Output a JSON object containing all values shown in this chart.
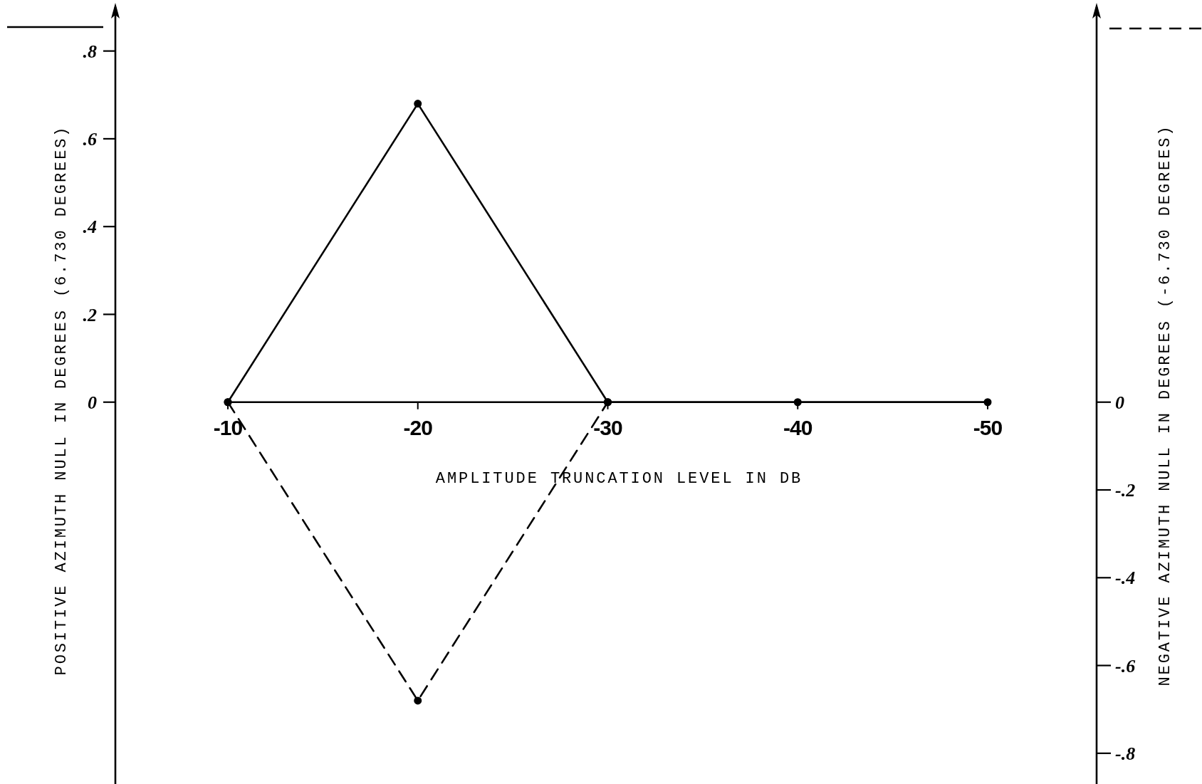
{
  "chart_data": {
    "type": "line",
    "xlabel": "AMPLITUDE TRUNCATION LEVEL IN DB",
    "ylabel": "POSITIVE AZIMUTH NULL IN DEGREES (6.730 DEGREES)",
    "y2label": "NEGATIVE AZIMUTH NULL IN DEGREES (-6.730 DEGREES)",
    "xlim": [
      -10,
      -50
    ],
    "xticks": [
      -10,
      -20,
      -30,
      -40,
      -50
    ],
    "ylim": [
      -0.87,
      0.9
    ],
    "yticks": [
      {
        "value": 0.8,
        "label": ".8"
      },
      {
        "value": 0.6,
        "label": ".6"
      },
      {
        "value": 0.4,
        "label": ".4"
      },
      {
        "value": 0.2,
        "label": ".2"
      },
      0
    ],
    "y2lim": [
      -0.87,
      0.9
    ],
    "y2ticks": [
      0,
      {
        "value": -0.2,
        "label": "-.2"
      },
      {
        "value": -0.4,
        "label": "-.4"
      },
      {
        "value": -0.6,
        "label": "-.6"
      },
      {
        "value": -0.8,
        "label": "-.8"
      }
    ],
    "marker": "circle",
    "series": [
      {
        "color": "#000000",
        "line_style": "solid",
        "x": [
          -10,
          -20,
          -30,
          -40,
          -50
        ],
        "values": [
          0,
          0.68,
          0,
          0,
          0
        ]
      },
      {
        "color": "#000000",
        "line_style": "dashed",
        "axis": "y2",
        "x": [
          -10,
          -20,
          -30
        ],
        "values": [
          0,
          -0.68,
          0
        ]
      }
    ]
  }
}
